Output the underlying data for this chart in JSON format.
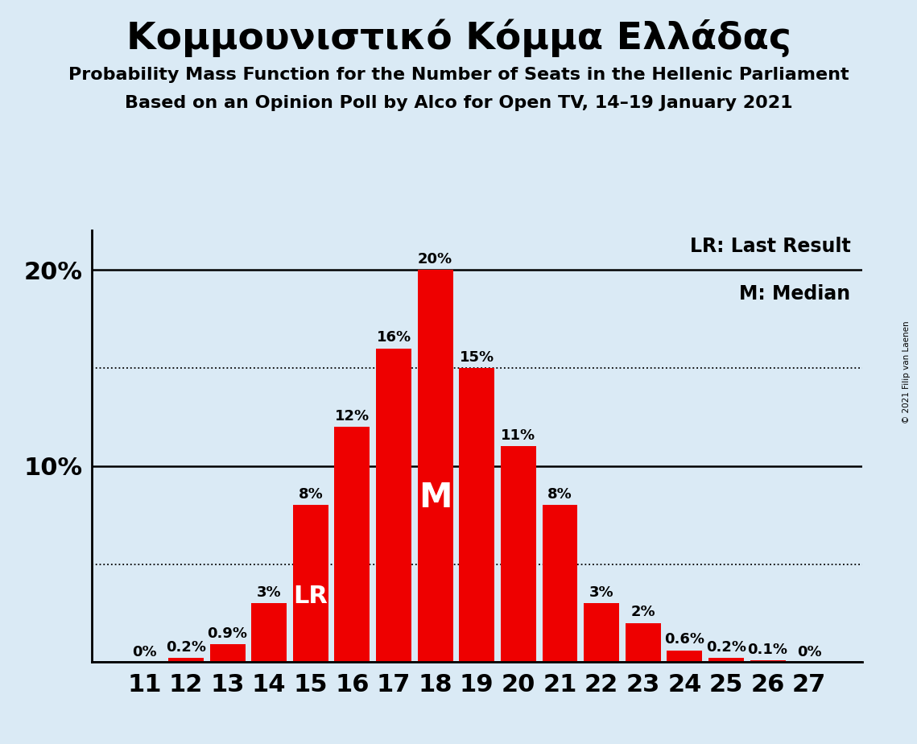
{
  "title": "Κομμουνιστικό Κόμμα Ελλάδας",
  "subtitle1": "Probability Mass Function for the Number of Seats in the Hellenic Parliament",
  "subtitle2": "Based on an Opinion Poll by Alco for Open TV, 14–19 January 2021",
  "copyright": "© 2021 Filip van Laenen",
  "categories": [
    11,
    12,
    13,
    14,
    15,
    16,
    17,
    18,
    19,
    20,
    21,
    22,
    23,
    24,
    25,
    26,
    27
  ],
  "values": [
    0.0,
    0.2,
    0.9,
    3.0,
    8.0,
    12.0,
    16.0,
    20.0,
    15.0,
    11.0,
    8.0,
    3.0,
    2.0,
    0.6,
    0.2,
    0.1,
    0.0
  ],
  "labels": [
    "0%",
    "0.2%",
    "0.9%",
    "3%",
    "8%",
    "12%",
    "16%",
    "20%",
    "15%",
    "11%",
    "8%",
    "3%",
    "2%",
    "0.6%",
    "0.2%",
    "0.1%",
    "0%"
  ],
  "bar_color": "#ee0000",
  "background_color": "#daeaf5",
  "lr_index": 4,
  "median_index": 7,
  "lr_label": "LR",
  "median_label": "M",
  "legend_lr": "LR: Last Result",
  "legend_m": "M: Median",
  "ylim": [
    0,
    22
  ],
  "dotted_lines": [
    5,
    15
  ],
  "label_fontsize": 13,
  "tick_fontsize": 22,
  "title_fontsize": 34,
  "subtitle_fontsize": 16,
  "legend_fontsize": 17,
  "lr_fontsize": 22,
  "m_fontsize": 30
}
